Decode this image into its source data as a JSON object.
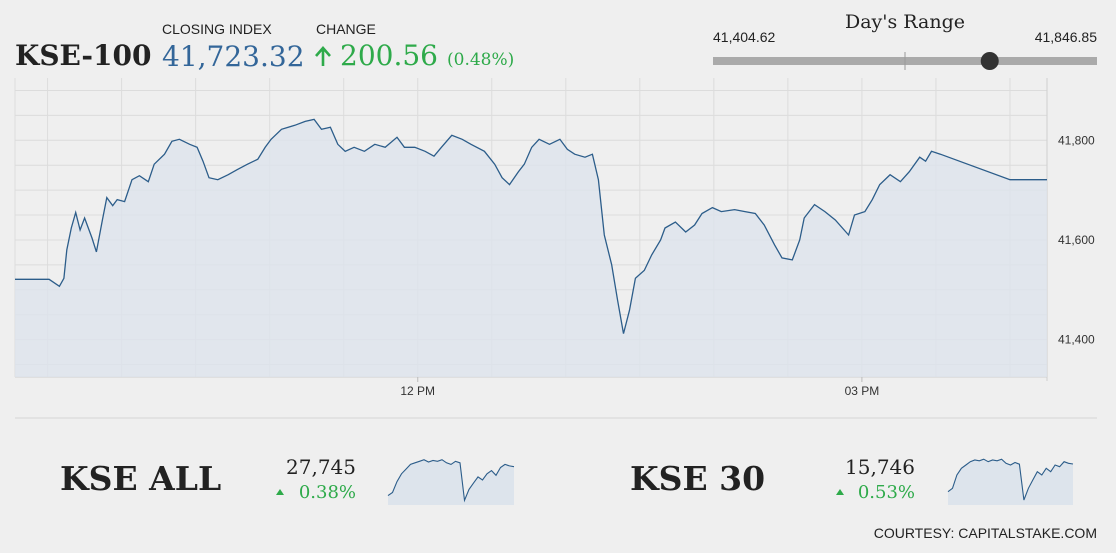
{
  "header": {
    "name": "KSE-100",
    "closing_label": "CLOSING INDEX",
    "closing_index": {
      "value": 41723.32,
      "label": "41,723.32"
    },
    "change_label": "CHANGE",
    "change_value": "200.56",
    "change_pct": "(0.48%)",
    "range_title": "Day's Range",
    "range_low": {
      "value": 41404.62,
      "label": "41,404.62"
    },
    "range_high": {
      "value": 41846.85,
      "label": "41,846.85"
    }
  },
  "chart_data": [
    {
      "type": "line",
      "color": "#2c5d8a",
      "fill": "#dde4ec",
      "x": [
        9.28,
        9.51,
        9.58,
        9.61,
        9.63,
        9.66,
        9.69,
        9.72,
        9.75,
        9.8,
        9.83,
        9.87,
        9.9,
        9.94,
        9.97,
        10.02,
        10.07,
        10.12,
        10.18,
        10.22,
        10.29,
        10.34,
        10.39,
        10.46,
        10.51,
        10.55,
        10.59,
        10.65,
        10.72,
        10.78,
        10.85,
        10.92,
        10.97,
        11.01,
        11.08,
        11.17,
        11.24,
        11.3,
        11.35,
        11.41,
        11.46,
        11.51,
        11.57,
        11.64,
        11.71,
        11.78,
        11.86,
        11.91,
        11.98,
        12.05,
        12.11,
        12.16,
        12.23,
        12.3,
        12.36,
        12.45,
        12.52,
        12.57,
        12.62,
        12.68,
        12.72,
        12.77,
        12.82,
        12.89,
        12.96,
        13.01,
        13.06,
        13.13,
        13.18,
        13.22,
        13.26,
        13.31,
        13.35,
        13.39,
        13.43,
        13.47,
        13.53,
        13.58,
        13.64,
        13.67,
        13.74,
        13.81,
        13.87,
        13.92,
        13.99,
        14.05,
        14.14,
        14.21,
        14.28,
        14.34,
        14.41,
        14.46,
        14.53,
        14.58,
        14.61,
        14.68,
        14.75,
        14.82,
        14.91,
        14.95,
        15.02,
        15.07,
        15.12,
        15.19,
        15.26,
        15.32,
        15.39,
        15.43,
        15.47,
        15.53,
        16.0,
        16.25
      ],
      "values": [
        41521,
        41521,
        41507,
        41523,
        41580,
        41624,
        41655,
        41620,
        41644,
        41604,
        41576,
        41640,
        41685,
        41669,
        41681,
        41677,
        41721,
        41729,
        41717,
        41752,
        41772,
        41798,
        41802,
        41792,
        41786,
        41758,
        41725,
        41721,
        41731,
        41741,
        41752,
        41762,
        41786,
        41802,
        41822,
        41830,
        41838,
        41842,
        41822,
        41826,
        41792,
        41778,
        41786,
        41778,
        41792,
        41786,
        41806,
        41786,
        41786,
        41778,
        41768,
        41786,
        41810,
        41802,
        41792,
        41778,
        41752,
        41725,
        41711,
        41737,
        41752,
        41786,
        41802,
        41792,
        41802,
        41782,
        41772,
        41766,
        41772,
        41721,
        41610,
        41550,
        41479,
        41412,
        41459,
        41523,
        41539,
        41570,
        41600,
        41624,
        41636,
        41616,
        41630,
        41653,
        41665,
        41657,
        41661,
        41657,
        41653,
        41630,
        41590,
        41564,
        41560,
        41600,
        41644,
        41671,
        41657,
        41640,
        41610,
        41650,
        41657,
        41681,
        41711,
        41731,
        41717,
        41737,
        41766,
        41758,
        41778,
        41772,
        41721,
        41721
      ],
      "xlim": [
        9.28,
        16.25
      ],
      "ylim": [
        41325,
        41925
      ],
      "xticks": [
        {
          "value": 12,
          "label": "12 PM"
        },
        {
          "value": 15,
          "label": "03 PM"
        }
      ],
      "yticks": [
        {
          "value": 41400,
          "label": "41,400"
        },
        {
          "value": 41600,
          "label": "41,600"
        },
        {
          "value": 41800,
          "label": "41,800"
        }
      ],
      "xgrid": [
        9.5,
        10,
        10.5,
        11,
        11.5,
        12,
        12.5,
        13,
        13.5,
        14,
        14.5,
        15,
        15.5,
        16
      ],
      "ygrid": [
        41350,
        41400,
        41450,
        41500,
        41550,
        41600,
        41650,
        41700,
        41750,
        41800,
        41850,
        41900
      ],
      "grid": true
    },
    {
      "type": "sparkline",
      "color": "#2c5d8a",
      "fill": "#dde4ec",
      "values": [
        27560,
        27580,
        27650,
        27700,
        27730,
        27760,
        27770,
        27780,
        27790,
        27775,
        27785,
        27780,
        27790,
        27770,
        27760,
        27780,
        27770,
        27530,
        27600,
        27640,
        27680,
        27660,
        27700,
        27720,
        27690,
        27740,
        27760,
        27750,
        27745
      ],
      "ylim": [
        27500,
        27820
      ]
    },
    {
      "type": "sparkline",
      "color": "#2c5d8a",
      "fill": "#dde4ec",
      "values": [
        15580,
        15600,
        15680,
        15720,
        15740,
        15760,
        15770,
        15765,
        15775,
        15760,
        15770,
        15765,
        15775,
        15750,
        15740,
        15755,
        15745,
        15530,
        15600,
        15650,
        15700,
        15680,
        15720,
        15700,
        15740,
        15730,
        15760,
        15750,
        15746
      ],
      "ylim": [
        15500,
        15800
      ]
    }
  ],
  "indices": [
    {
      "name": "KSE ALL",
      "value": "27,745",
      "change": "0.38%"
    },
    {
      "name": "KSE 30",
      "value": "15,746",
      "change": "0.53%"
    }
  ],
  "footer": "COURTESY: CAPITALSTAKE.COM"
}
